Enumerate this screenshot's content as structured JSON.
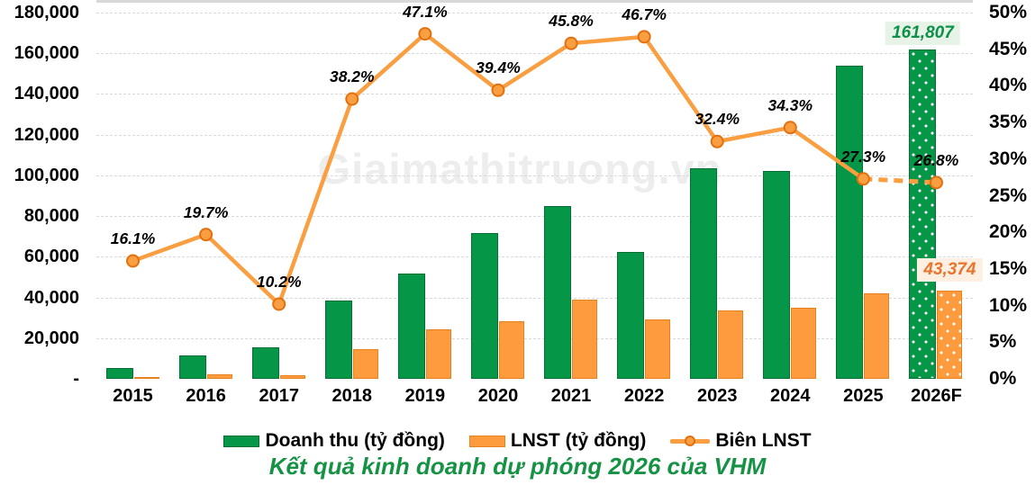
{
  "watermark": "Giaimathitruong.vn",
  "title": "Kết quả kinh doanh dự phóng 2026 của VHM",
  "legend": [
    {
      "label": "Doanh thu (tỷ đồng)",
      "marker": "green-bar-swatch"
    },
    {
      "label": "LNST (tỷ đồng)",
      "marker": "orange-bar-swatch"
    },
    {
      "label": "Biên LNST",
      "marker": "orange-line-marker"
    }
  ],
  "colors": {
    "revenue_bar": "#059647",
    "lnst_bar": "#FD9B3E",
    "margin_line": "#FA9E42",
    "title_green": "#169245",
    "revenue_label_bg": "#E6F3E6",
    "lnst_label_bg": "#FDEFE2"
  },
  "chart_data": {
    "type": "bar+line combo",
    "categories": [
      "2015",
      "2016",
      "2017",
      "2018",
      "2019",
      "2020",
      "2021",
      "2022",
      "2023",
      "2024",
      "2025",
      "2026F"
    ],
    "forecast_category": "2026F",
    "series": [
      {
        "name": "Doanh thu (tỷ đồng)",
        "type": "bar",
        "axis": "left",
        "values": [
          5500,
          11500,
          15500,
          38600,
          51600,
          71500,
          85000,
          62400,
          103500,
          102300,
          154000,
          161807
        ],
        "value_label": "161,807"
      },
      {
        "name": "LNST (tỷ đồng)",
        "type": "bar",
        "axis": "left",
        "values": [
          900,
          2300,
          1600,
          14800,
          24300,
          28200,
          39000,
          29200,
          33500,
          35100,
          42000,
          43374
        ],
        "value_label": "43,374"
      },
      {
        "name": "Biên LNST",
        "type": "line",
        "axis": "right",
        "values": [
          16.1,
          19.7,
          10.2,
          38.2,
          47.1,
          39.4,
          45.8,
          46.7,
          32.4,
          34.3,
          27.3,
          26.8
        ],
        "point_labels": [
          "16.1%",
          "19.7%",
          "10.2%",
          "38.2%",
          "47.1%",
          "39.4%",
          "45.8%",
          "46.7%",
          "32.4%",
          "34.3%",
          "27.3%",
          "26.8%"
        ],
        "last_segment_dashed": true
      }
    ],
    "left_axis": {
      "min": 0,
      "max": 180000,
      "step": 20000,
      "tick_labels": [
        "180,000",
        "160,000",
        "140,000",
        "120,000",
        "100,000",
        "80,000",
        "60,000",
        "40,000",
        "20,000",
        "-"
      ]
    },
    "right_axis": {
      "min": 0,
      "max": 50,
      "step": 5,
      "tick_labels": [
        "50%",
        "45%",
        "40%",
        "35%",
        "30%",
        "25%",
        "20%",
        "15%",
        "10%",
        "5%",
        "0%"
      ]
    },
    "grid": "horizontal-dashed"
  }
}
